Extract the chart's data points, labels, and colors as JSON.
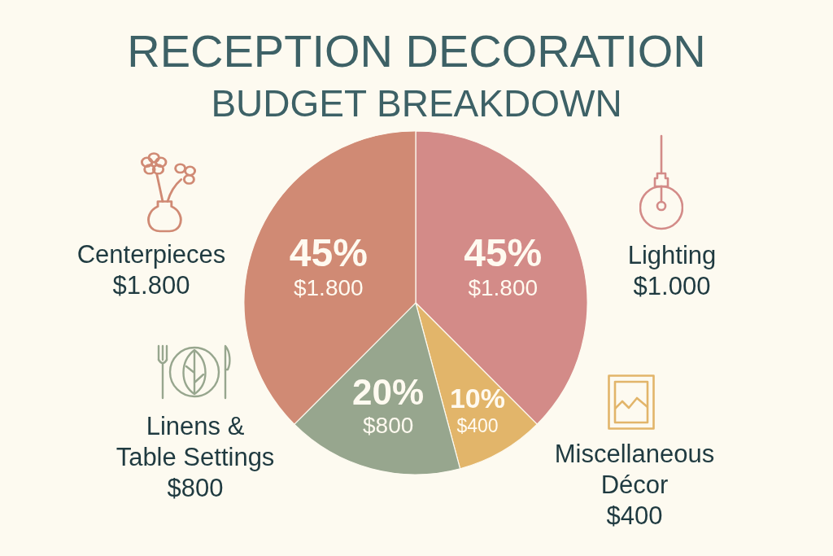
{
  "chart_data": {
    "type": "pie",
    "title": "RECEPTION DECORATION",
    "subtitle": "BUDGET BREAKDOWN",
    "categories": [
      "Lighting\n$1.000",
      "Miscellaneous\nDécor\n$400",
      "Linens &\nTable Settings\n$800",
      "Centerpieces\n$1.800"
    ],
    "values": [
      1800,
      400,
      800,
      1800
    ],
    "value_labels": [
      "45%\n$1.800",
      "10%\n$400",
      "20%\n$800",
      "45%\n$1.800"
    ],
    "colors": [
      "#d38b88",
      "#e2b56a",
      "#97a68e",
      "#d08a74"
    ],
    "legend": "bottom left"
  }
}
